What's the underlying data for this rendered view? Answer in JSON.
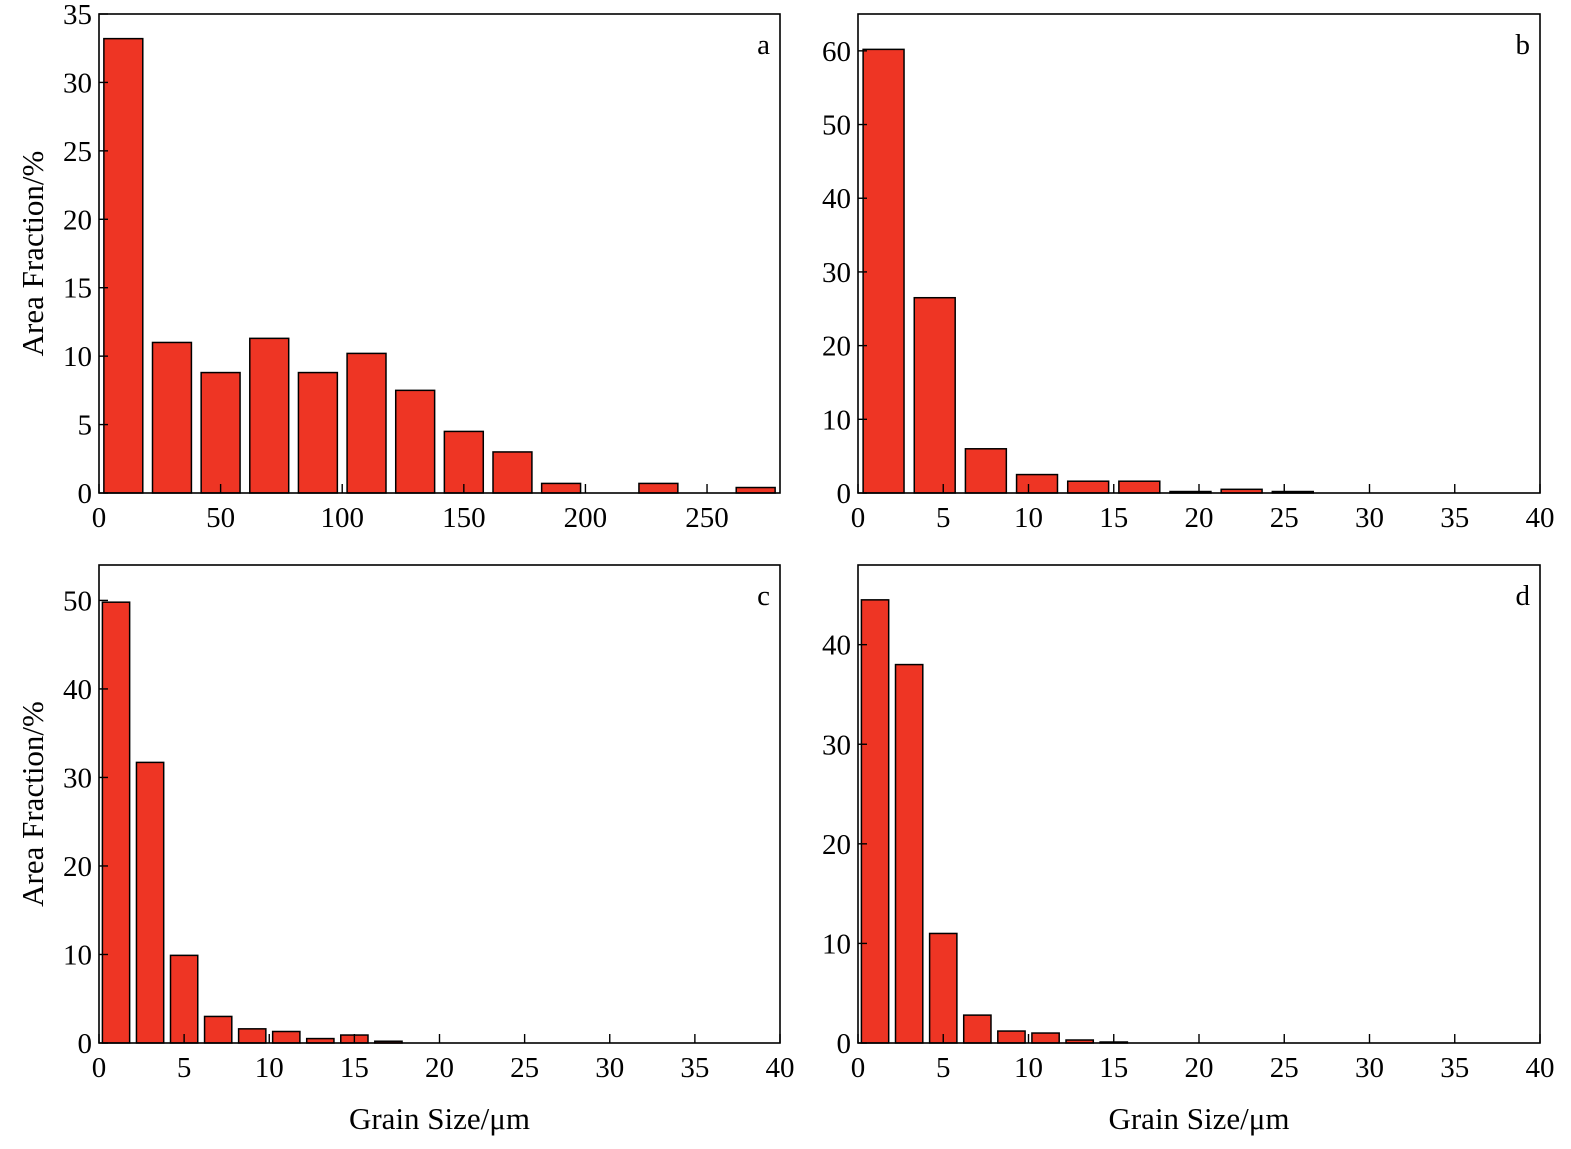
{
  "chart_data": [
    {
      "type": "bar",
      "panel_label": "a",
      "xlabel": "",
      "ylabel": "Area Fraction/%",
      "xlim": [
        0,
        280
      ],
      "ylim": [
        0,
        35
      ],
      "x_ticks": [
        0,
        50,
        100,
        150,
        200,
        250
      ],
      "y_ticks": [
        0,
        5,
        10,
        15,
        20,
        25,
        30,
        35
      ],
      "bar_width": 16,
      "x": [
        10,
        30,
        50,
        70,
        90,
        110,
        130,
        150,
        170,
        190,
        210,
        230,
        250,
        270
      ],
      "values": [
        33.2,
        11.0,
        8.8,
        11.3,
        8.8,
        10.2,
        7.5,
        4.5,
        3.0,
        0.7,
        0,
        0.7,
        0,
        0.4
      ],
      "color": "#ee3524",
      "grid": false
    },
    {
      "type": "bar",
      "panel_label": "b",
      "xlabel": "",
      "ylabel": "",
      "xlim": [
        0,
        40
      ],
      "ylim": [
        0,
        65
      ],
      "x_ticks": [
        0,
        5,
        10,
        15,
        20,
        25,
        30,
        35,
        40
      ],
      "y_ticks": [
        0,
        10,
        20,
        30,
        40,
        50,
        60
      ],
      "bar_width": 2.4,
      "x": [
        1.5,
        4.5,
        7.5,
        10.5,
        13.5,
        16.5,
        19.5,
        22.5,
        25.5
      ],
      "values": [
        60.2,
        26.5,
        6.0,
        2.5,
        1.6,
        1.6,
        0.2,
        0.5,
        0.2
      ],
      "color": "#ee3524",
      "grid": false
    },
    {
      "type": "bar",
      "panel_label": "c",
      "xlabel": "Grain Size/μm",
      "ylabel": "Area Fraction/%",
      "xlim": [
        0,
        40
      ],
      "ylim": [
        0,
        54
      ],
      "x_ticks": [
        0,
        5,
        10,
        15,
        20,
        25,
        30,
        35,
        40
      ],
      "y_ticks": [
        0,
        10,
        20,
        30,
        40,
        50
      ],
      "bar_width": 1.6,
      "x": [
        1,
        3,
        5,
        7,
        9,
        11,
        13,
        15,
        17
      ],
      "values": [
        49.8,
        31.7,
        9.9,
        3.0,
        1.6,
        1.3,
        0.5,
        0.9,
        0.2
      ],
      "color": "#ee3524",
      "grid": false
    },
    {
      "type": "bar",
      "panel_label": "d",
      "xlabel": "Grain Size/μm",
      "ylabel": "",
      "xlim": [
        0,
        40
      ],
      "ylim": [
        0,
        48
      ],
      "x_ticks": [
        0,
        5,
        10,
        15,
        20,
        25,
        30,
        35,
        40
      ],
      "y_ticks": [
        0,
        10,
        20,
        30,
        40
      ],
      "bar_width": 1.6,
      "x": [
        1,
        3,
        5,
        7,
        9,
        11,
        13,
        15
      ],
      "values": [
        44.5,
        38.0,
        11.0,
        2.8,
        1.2,
        1.0,
        0.3,
        0.1
      ],
      "color": "#ee3524",
      "grid": false
    }
  ]
}
